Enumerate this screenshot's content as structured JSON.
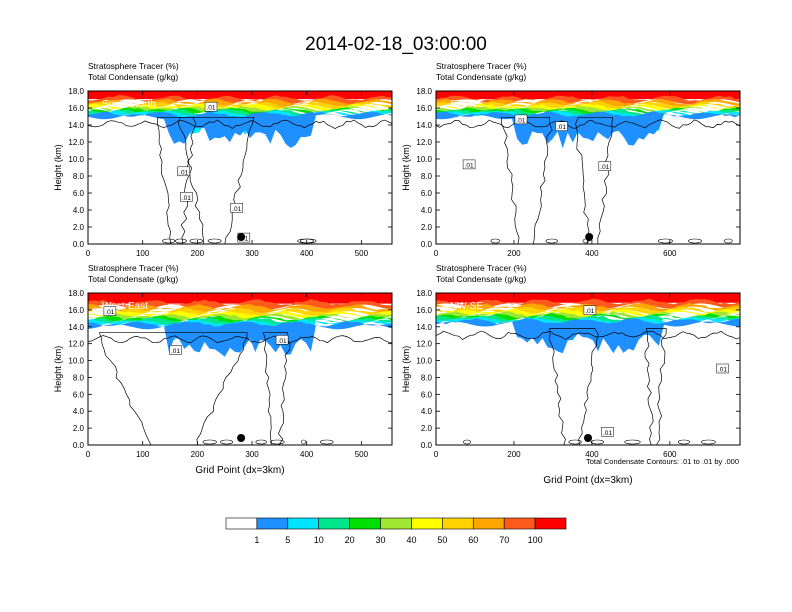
{
  "title": "2014-02-18_03:00:00",
  "colors": {
    "bands": [
      "#ffffff",
      "#1e90ff",
      "#00e5ff",
      "#00e68c",
      "#00e000",
      "#a0e632",
      "#ffff00",
      "#ffd200",
      "#ffa500",
      "#ff5a1e",
      "#ff0000"
    ],
    "contour": "#000000",
    "marker": "#000000"
  },
  "colorbar": {
    "labels": [
      "1",
      "5",
      "10",
      "20",
      "30",
      "40",
      "50",
      "60",
      "70",
      "100"
    ]
  },
  "footnote": "Total Condensate Contours: .01 to .01 by .000",
  "chart_data": [
    {
      "type": "heatmap",
      "title_line1": "Stratosphere Tracer   (%)",
      "title_line2": "Total Condensate   (g/kg)",
      "cross_section": "South-North",
      "ylabel": "Height (km)",
      "xlabel": "",
      "xlim": [
        0,
        556
      ],
      "ylim": [
        0,
        18
      ],
      "xticks": [
        "0",
        "100",
        "200",
        "300",
        "400",
        "500"
      ],
      "yticks": [
        "0.0",
        "2.0",
        "4.0",
        "6.0",
        "8.0",
        "10.0",
        "12.0",
        "14.0",
        "16.0",
        "18.0"
      ],
      "tropopause_km": 15.2,
      "ring_km": 14.1,
      "marker_x": 280,
      "contour_labels": [
        {
          "text": ".01",
          "x": 225,
          "y": 16.1
        },
        {
          "text": ".01",
          "x": 175,
          "y": 8.5
        },
        {
          "text": ".01",
          "x": 180,
          "y": 5.5
        },
        {
          "text": ".01",
          "x": 272,
          "y": 4.2
        },
        {
          "text": ".01",
          "x": 285,
          "y": 0.7
        }
      ]
    },
    {
      "type": "heatmap",
      "title_line1": "Stratosphere Tracer   (%)",
      "title_line2": "Total Condensate   (g/kg)",
      "cross_section": "SW-NE",
      "ylabel": "Height (km)",
      "xlabel": "",
      "xlim": [
        0,
        780
      ],
      "ylim": [
        0,
        18
      ],
      "xticks": [
        "0",
        "200",
        "400",
        "600"
      ],
      "yticks": [
        "0.0",
        "2.0",
        "4.0",
        "6.0",
        "8.0",
        "10.0",
        "12.0",
        "14.0",
        "16.0",
        "18.0"
      ],
      "tropopause_km": 15.2,
      "ring_km": 14.1,
      "marker_x": 393,
      "contour_labels": [
        {
          "text": ".01",
          "x": 218,
          "y": 14.6
        },
        {
          "text": ".01",
          "x": 322,
          "y": 13.8
        },
        {
          "text": ".01",
          "x": 85,
          "y": 9.3
        },
        {
          "text": ".01",
          "x": 433,
          "y": 9.1
        }
      ]
    },
    {
      "type": "heatmap",
      "title_line1": "Stratosphere Tracer   (%)",
      "title_line2": "Total Condensate   (g/kg)",
      "cross_section": "West-East",
      "ylabel": "Height (km)",
      "xlabel": "Grid Point (dx=3km)",
      "xlim": [
        0,
        556
      ],
      "ylim": [
        0,
        18
      ],
      "xticks": [
        "0",
        "100",
        "200",
        "300",
        "400",
        "500"
      ],
      "yticks": [
        "0.0",
        "2.0",
        "4.0",
        "6.0",
        "8.0",
        "10.0",
        "12.0",
        "14.0",
        "16.0",
        "18.0"
      ],
      "tropopause_km": 14.3,
      "ring_km": 12.5,
      "marker_x": 280,
      "contour_labels": [
        {
          "text": ".01",
          "x": 40,
          "y": 15.8
        },
        {
          "text": ".01",
          "x": 160,
          "y": 11.2
        },
        {
          "text": ".01",
          "x": 355,
          "y": 12.4
        }
      ]
    },
    {
      "type": "heatmap",
      "title_line1": "Stratosphere Tracer   (%)",
      "title_line2": "Total Condensate   (g/kg)",
      "cross_section": "NW-SE",
      "ylabel": "Height (km)",
      "xlabel": "Grid Point (dx=3km)",
      "xlim": [
        0,
        780
      ],
      "ylim": [
        0,
        18
      ],
      "xticks": [
        "0",
        "200",
        "400",
        "600"
      ],
      "yticks": [
        "0.0",
        "2.0",
        "4.0",
        "6.0",
        "8.0",
        "10.0",
        "12.0",
        "14.0",
        "16.0",
        "18.0"
      ],
      "tropopause_km": 14.6,
      "ring_km": 13.0,
      "marker_x": 390,
      "contour_labels": [
        {
          "text": ".01",
          "x": 395,
          "y": 15.9
        },
        {
          "text": ".01",
          "x": 735,
          "y": 9.0
        },
        {
          "text": ".01",
          "x": 440,
          "y": 1.5
        }
      ]
    }
  ]
}
